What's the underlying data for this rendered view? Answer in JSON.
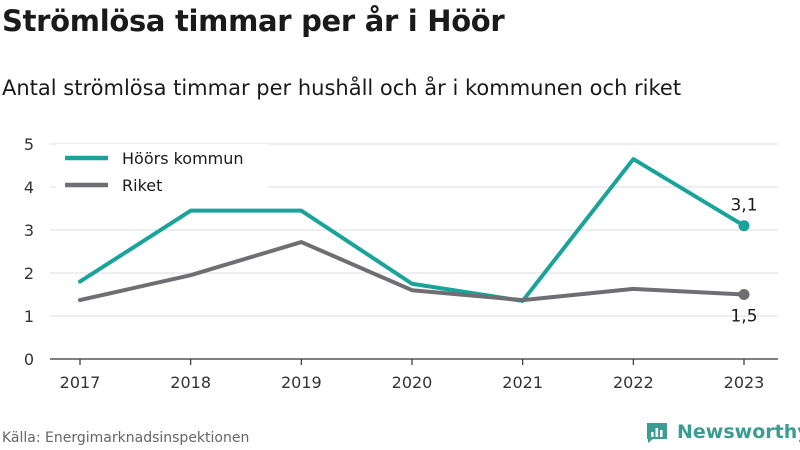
{
  "title": "Strömlösa timmar per år i Höör",
  "subtitle": "Antal strömlösa timmar per hushåll och år i kommunen och riket",
  "source": "Källa: Energimarknadsinspektionen",
  "brand": "Newsworthy",
  "colors": {
    "hoor": "#1aa39b",
    "riket": "#6f6e73",
    "grid": "#dddddd",
    "axis": "#333333",
    "brand": "#3a9c92"
  },
  "chart_data": {
    "type": "line",
    "categories": [
      "2017",
      "2018",
      "2019",
      "2020",
      "2021",
      "2022",
      "2023"
    ],
    "yticks": [
      0,
      1,
      2,
      3,
      4,
      5
    ],
    "ylim": [
      0,
      5
    ],
    "legend_position": "top-left",
    "grid": true,
    "series": [
      {
        "key": "hoor",
        "name": "Höörs kommun",
        "values": [
          1.8,
          3.45,
          3.45,
          1.75,
          1.35,
          4.65,
          3.1
        ],
        "end_label": "3,1"
      },
      {
        "key": "riket",
        "name": "Riket",
        "values": [
          1.37,
          1.95,
          2.72,
          1.6,
          1.37,
          1.63,
          1.5
        ],
        "end_label": "1,5"
      }
    ]
  }
}
